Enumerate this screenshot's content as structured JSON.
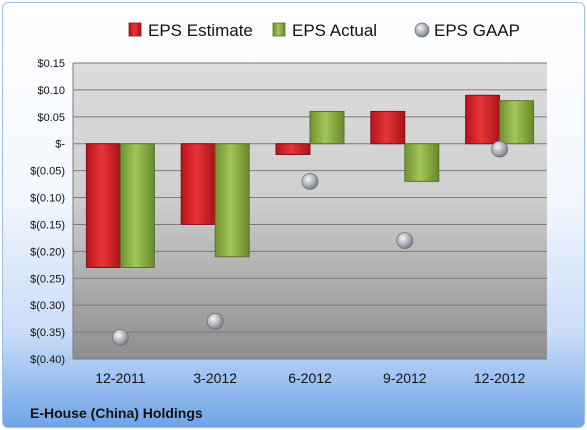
{
  "company_name": "E-House (China) Holdings",
  "colors": {
    "estimate": "#d8222a",
    "actual": "#8fb342",
    "gaap": "#b8bcc2"
  },
  "chart_data": {
    "type": "bar",
    "categories": [
      "12-2011",
      "3-2012",
      "6-2012",
      "9-2012",
      "12-2012"
    ],
    "series": [
      {
        "name": "EPS Estimate",
        "kind": "bar",
        "values": [
          -0.23,
          -0.15,
          -0.02,
          0.06,
          0.09
        ]
      },
      {
        "name": "EPS Actual",
        "kind": "bar",
        "values": [
          -0.23,
          -0.21,
          0.06,
          -0.07,
          0.08
        ]
      },
      {
        "name": "EPS GAAP",
        "kind": "marker",
        "values": [
          -0.36,
          -0.33,
          -0.07,
          -0.18,
          -0.01
        ]
      }
    ],
    "ylim": [
      -0.4,
      0.15
    ],
    "yticks": [
      0.15,
      0.1,
      0.05,
      0,
      -0.05,
      -0.1,
      -0.15,
      -0.2,
      -0.25,
      -0.3,
      -0.35,
      -0.4
    ],
    "ytick_labels": [
      "$0.15",
      "$0.10",
      "$0.05",
      "$-",
      "$(0.05)",
      "$(0.10)",
      "$(0.15)",
      "$(0.20)",
      "$(0.25)",
      "$(0.30)",
      "$(0.35)",
      "$(0.40)"
    ],
    "grid": true,
    "legend": "top"
  }
}
